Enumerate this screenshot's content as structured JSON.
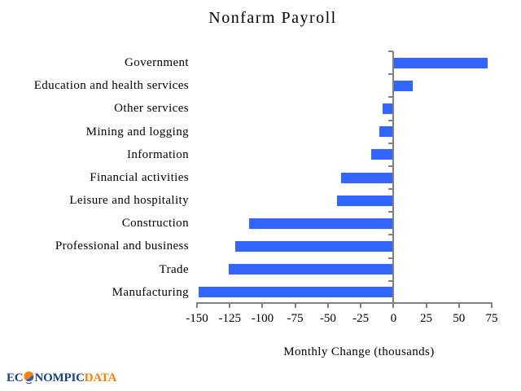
{
  "title": "Nonfarm Payroll",
  "chart_data": {
    "type": "bar",
    "orientation": "horizontal",
    "title": "Nonfarm Payroll",
    "xlabel": "Monthly Change (thousands)",
    "categories": [
      "Government",
      "Education and health services",
      "Other services",
      "Mining and logging",
      "Information",
      "Financial activities",
      "Leisure and hospitality",
      "Construction",
      "Professional and business",
      "Trade",
      "Manufacturing"
    ],
    "values": [
      72,
      15,
      -8,
      -11,
      -17,
      -40,
      -43,
      -110,
      -121,
      -126,
      -149
    ],
    "xlim": [
      -150,
      75
    ],
    "xticks": [
      -150,
      -125,
      -100,
      -75,
      -50,
      -25,
      0,
      25,
      50,
      75
    ],
    "xtick_labels": [
      "-150",
      "-125",
      "-100",
      "-75",
      "-50",
      "-25",
      "0",
      "25",
      "50",
      "75"
    ],
    "grid": false,
    "legend": false,
    "bar_color": "#3366FF",
    "axis_color": "#808080"
  },
  "logo": {
    "prefix": "EC",
    "middle": "NOMPIC",
    "suffix": "DATA",
    "navy": "#1A4080",
    "orange": "#EF820C"
  }
}
